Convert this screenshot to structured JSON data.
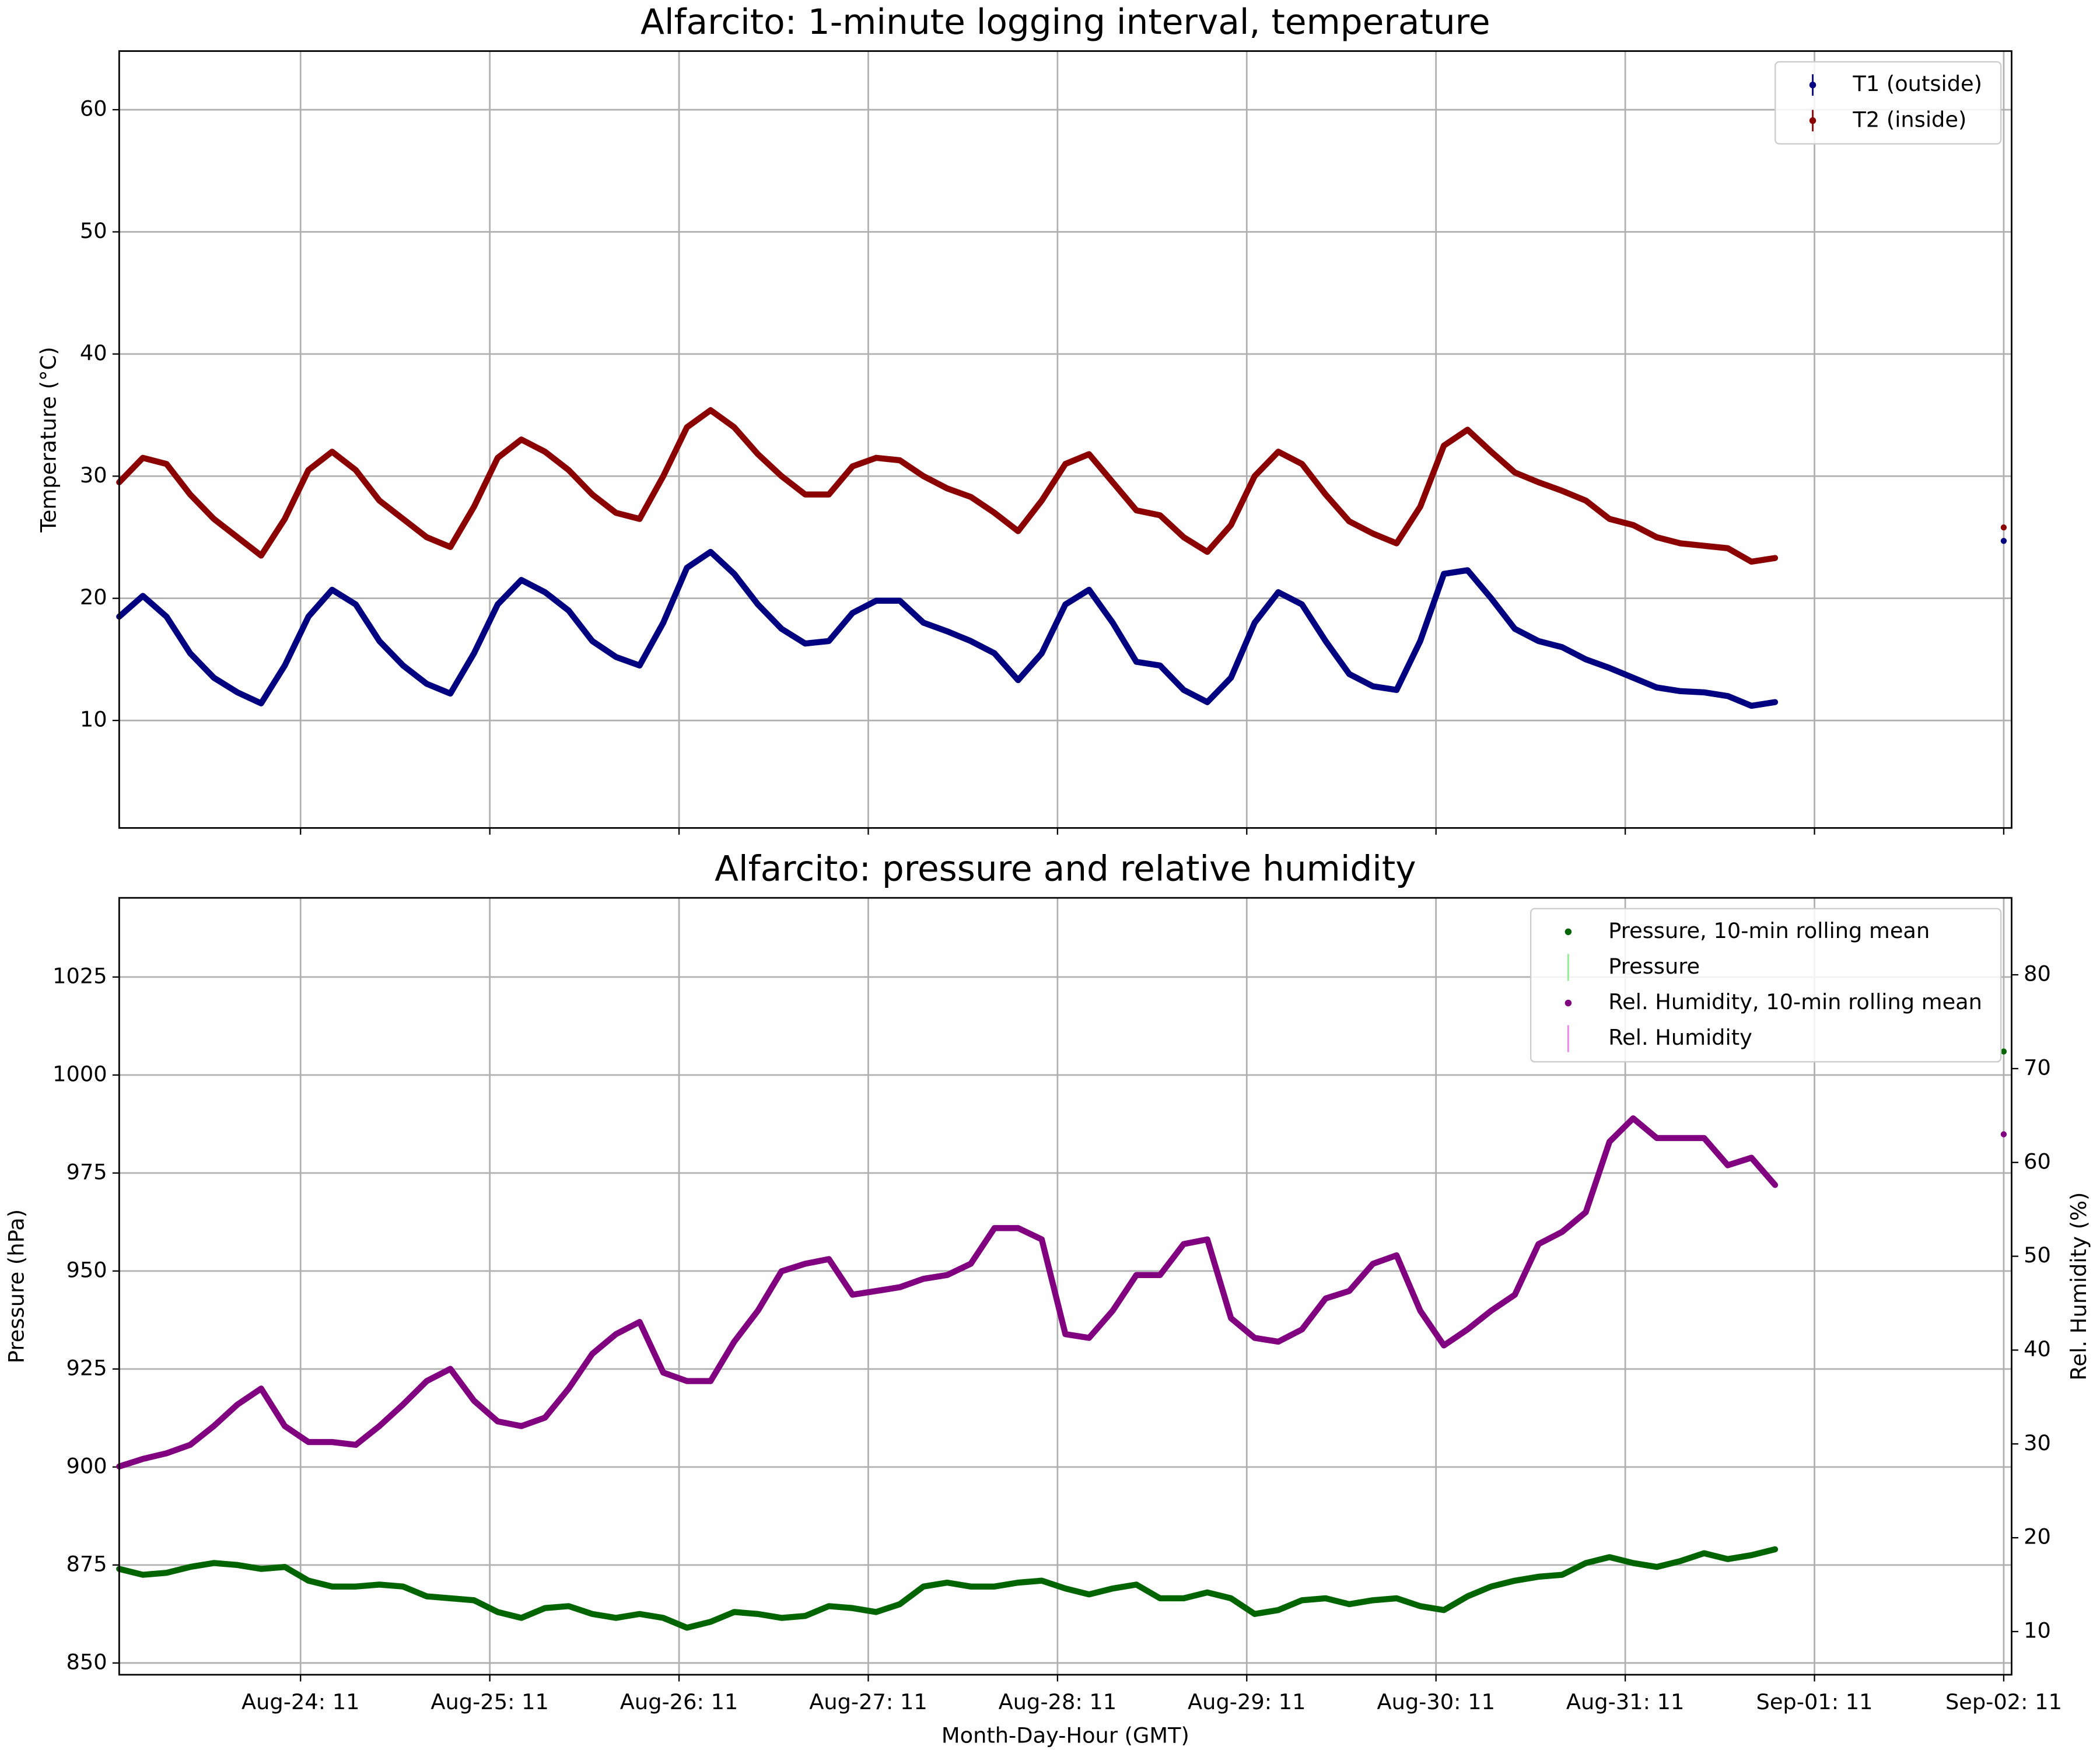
{
  "chart_data": [
    {
      "type": "line",
      "title": "Alfarcito: 1-minute logging interval, temperature",
      "ylabel": "Temperature (°C)",
      "x": [
        "Aug-23: 12",
        "Aug-23: 15",
        "Aug-23: 18",
        "Aug-23: 21",
        "Aug-24: 00",
        "Aug-24: 03",
        "Aug-24: 06",
        "Aug-24: 09",
        "Aug-24: 12",
        "Aug-24: 15",
        "Aug-24: 18",
        "Aug-24: 21",
        "Aug-25: 00",
        "Aug-25: 03",
        "Aug-25: 06",
        "Aug-25: 09",
        "Aug-25: 12",
        "Aug-25: 15",
        "Aug-25: 18",
        "Aug-25: 21",
        "Aug-26: 00",
        "Aug-26: 03",
        "Aug-26: 06",
        "Aug-26: 09",
        "Aug-26: 12",
        "Aug-26: 15",
        "Aug-26: 18",
        "Aug-26: 21",
        "Aug-27: 00",
        "Aug-27: 03",
        "Aug-27: 06",
        "Aug-27: 09",
        "Aug-27: 12",
        "Aug-27: 15",
        "Aug-27: 18",
        "Aug-27: 21",
        "Aug-28: 00",
        "Aug-28: 03",
        "Aug-28: 06",
        "Aug-28: 09",
        "Aug-28: 12",
        "Aug-28: 15",
        "Aug-28: 18",
        "Aug-28: 21",
        "Aug-29: 00",
        "Aug-29: 03",
        "Aug-29: 06",
        "Aug-29: 09",
        "Aug-29: 12",
        "Aug-29: 15",
        "Aug-29: 18",
        "Aug-29: 21",
        "Aug-30: 00",
        "Aug-30: 03",
        "Aug-30: 06",
        "Aug-30: 09",
        "Aug-30: 12",
        "Aug-30: 15",
        "Aug-30: 18",
        "Aug-30: 21",
        "Aug-31: 00",
        "Aug-31: 03",
        "Aug-31: 06",
        "Aug-31: 09",
        "Aug-31: 12",
        "Aug-31: 15",
        "Aug-31: 18",
        "Aug-31: 21",
        "Sep-01: 00",
        "Sep-01: 03",
        "Sep-01: 06",
        "Sep-01: 09",
        "Sep-02: 11"
      ],
      "series": [
        {
          "name": "T1 (outside)",
          "color": "#000080",
          "values": [
            18.5,
            20.2,
            18.5,
            15.5,
            13.5,
            12.3,
            11.4,
            14.5,
            18.5,
            20.7,
            19.5,
            16.5,
            14.5,
            13,
            12.2,
            15.5,
            19.5,
            21.5,
            20.5,
            19,
            16.5,
            15.2,
            14.5,
            18,
            22.5,
            23.8,
            22,
            19.5,
            17.5,
            16.3,
            16.5,
            18.8,
            19.8,
            19.8,
            18,
            17.3,
            16.5,
            15.5,
            13.3,
            15.5,
            19.5,
            20.7,
            18,
            14.8,
            14.5,
            12.5,
            11.5,
            13.5,
            18,
            20.5,
            19.5,
            16.5,
            13.8,
            12.8,
            12.5,
            16.5,
            22,
            22.3,
            20,
            17.5,
            16.5,
            16,
            15,
            14.3,
            13.5,
            12.7,
            12.4,
            12.3,
            12,
            11.2,
            11.5,
            null,
            24.7
          ]
        },
        {
          "name": "T2 (inside)",
          "color": "#8b0000",
          "values": [
            29.5,
            31.5,
            31,
            28.5,
            26.5,
            25,
            23.5,
            26.5,
            30.5,
            32,
            30.5,
            28,
            26.5,
            25,
            24.2,
            27.5,
            31.5,
            33,
            32,
            30.5,
            28.5,
            27,
            26.5,
            30,
            34,
            35.4,
            34,
            31.8,
            30,
            28.5,
            28.5,
            30.8,
            31.5,
            31.3,
            30,
            29,
            28.3,
            27,
            25.5,
            28,
            31,
            31.8,
            29.5,
            27.2,
            26.8,
            25,
            23.8,
            26,
            30,
            32,
            31,
            28.5,
            26.3,
            25.3,
            24.5,
            27.5,
            32.5,
            33.8,
            32,
            30.3,
            29.5,
            28.8,
            28,
            26.5,
            26,
            25,
            24.5,
            24.3,
            24.1,
            23,
            23.3,
            null,
            25.8
          ]
        }
      ],
      "xlim": [
        "Aug-23: 12",
        "Sep-02: 12"
      ],
      "xticks": [
        "Aug-24: 11",
        "Aug-25: 11",
        "Aug-26: 11",
        "Aug-27: 11",
        "Aug-28: 11",
        "Aug-29: 11",
        "Aug-30: 11",
        "Aug-31: 11",
        "Sep-01: 11",
        "Sep-02: 11"
      ],
      "ylim": [
        1.2,
        64.8
      ],
      "yticks": [
        10,
        20,
        30,
        40,
        50,
        60
      ],
      "grid": true,
      "legend": "upper right"
    },
    {
      "type": "line",
      "title": "Alfarcito: pressure and relative humidity",
      "xlabel": "Month-Day-Hour (GMT)",
      "ylabel": "Pressure (hPa)",
      "y2label": "Rel. Humidity (%)",
      "x": [
        "Aug-23: 12",
        "Aug-23: 15",
        "Aug-23: 18",
        "Aug-23: 21",
        "Aug-24: 00",
        "Aug-24: 03",
        "Aug-24: 06",
        "Aug-24: 09",
        "Aug-24: 12",
        "Aug-24: 15",
        "Aug-24: 18",
        "Aug-24: 21",
        "Aug-25: 00",
        "Aug-25: 03",
        "Aug-25: 06",
        "Aug-25: 09",
        "Aug-25: 12",
        "Aug-25: 15",
        "Aug-25: 18",
        "Aug-25: 21",
        "Aug-26: 00",
        "Aug-26: 03",
        "Aug-26: 06",
        "Aug-26: 09",
        "Aug-26: 12",
        "Aug-26: 15",
        "Aug-26: 18",
        "Aug-26: 21",
        "Aug-27: 00",
        "Aug-27: 03",
        "Aug-27: 06",
        "Aug-27: 09",
        "Aug-27: 12",
        "Aug-27: 15",
        "Aug-27: 18",
        "Aug-27: 21",
        "Aug-28: 00",
        "Aug-28: 03",
        "Aug-28: 06",
        "Aug-28: 09",
        "Aug-28: 12",
        "Aug-28: 15",
        "Aug-28: 18",
        "Aug-28: 21",
        "Aug-29: 00",
        "Aug-29: 03",
        "Aug-29: 06",
        "Aug-29: 09",
        "Aug-29: 12",
        "Aug-29: 15",
        "Aug-29: 18",
        "Aug-29: 21",
        "Aug-30: 00",
        "Aug-30: 03",
        "Aug-30: 06",
        "Aug-30: 09",
        "Aug-30: 12",
        "Aug-30: 15",
        "Aug-30: 18",
        "Aug-30: 21",
        "Aug-31: 00",
        "Aug-31: 03",
        "Aug-31: 06",
        "Aug-31: 09",
        "Aug-31: 12",
        "Aug-31: 15",
        "Aug-31: 18",
        "Aug-31: 21",
        "Sep-01: 00",
        "Sep-01: 03",
        "Sep-01: 06",
        "Sep-01: 09",
        "Sep-02: 11"
      ],
      "series": [
        {
          "name": "Pressure, 10-min rolling mean",
          "color": "#006400",
          "values": [
            874,
            872.5,
            873,
            874.5,
            875.5,
            875,
            874,
            874.5,
            871,
            869.5,
            869.5,
            870,
            869.5,
            867,
            866.5,
            866,
            863,
            861.5,
            864,
            864.5,
            862.5,
            861.5,
            862.5,
            861.5,
            859,
            860.5,
            863,
            862.5,
            861.5,
            862,
            864.5,
            864,
            863,
            865,
            869.5,
            870.5,
            869.5,
            869.5,
            870.5,
            871,
            869,
            867.5,
            869,
            870,
            866.5,
            866.5,
            868,
            866.5,
            862.5,
            863.5,
            866,
            866.5,
            865,
            866,
            866.5,
            864.5,
            863.5,
            867,
            869.5,
            871,
            872,
            872.5,
            875.5,
            877,
            875.5,
            874.5,
            876,
            878,
            876.5,
            877.5,
            879,
            null,
            1006
          ]
        },
        {
          "name": "Pressure",
          "color": "#90ee90"
        },
        {
          "name": "Rel. Humidity, 10-min rolling mean",
          "color": "#800080",
          "axis": "y2",
          "values": [
            27.6,
            28.4,
            29,
            29.9,
            31.9,
            34.2,
            35.9,
            31.9,
            30.2,
            30.2,
            29.9,
            31.9,
            34.2,
            36.7,
            38,
            34.6,
            32.4,
            31.9,
            32.8,
            35.9,
            39.6,
            41.7,
            43,
            37.6,
            36.7,
            36.7,
            40.9,
            44.2,
            48.4,
            49.2,
            49.7,
            45.9,
            46.3,
            46.7,
            47.6,
            48,
            49.2,
            53,
            53,
            51.8,
            41.7,
            41.3,
            44.2,
            48,
            48,
            51.3,
            51.8,
            43.4,
            41.3,
            40.9,
            42.2,
            45.5,
            46.3,
            49.2,
            50.1,
            44.2,
            40.5,
            42.2,
            44.2,
            45.9,
            51.3,
            52.6,
            54.7,
            62.2,
            64.7,
            62.6,
            62.6,
            62.6,
            59.7,
            60.5,
            57.6,
            null,
            63
          ]
        },
        {
          "name": "Rel. Humidity",
          "color": "#ee82ee",
          "axis": "y2"
        }
      ],
      "xlim": [
        "Aug-23: 12",
        "Sep-02: 12"
      ],
      "xticks": [
        "Aug-24: 11",
        "Aug-25: 11",
        "Aug-26: 11",
        "Aug-27: 11",
        "Aug-28: 11",
        "Aug-29: 11",
        "Aug-30: 11",
        "Aug-31: 11",
        "Sep-01: 11",
        "Sep-02: 11"
      ],
      "ylim": [
        847,
        1045.2
      ],
      "yticks": [
        850,
        875,
        900,
        925,
        950,
        975,
        1000,
        1025
      ],
      "y2lim": [
        5.4,
        88.2
      ],
      "y2ticks": [
        10,
        20,
        30,
        40,
        50,
        60,
        70,
        80
      ],
      "grid": true,
      "legend": "upper right"
    }
  ]
}
